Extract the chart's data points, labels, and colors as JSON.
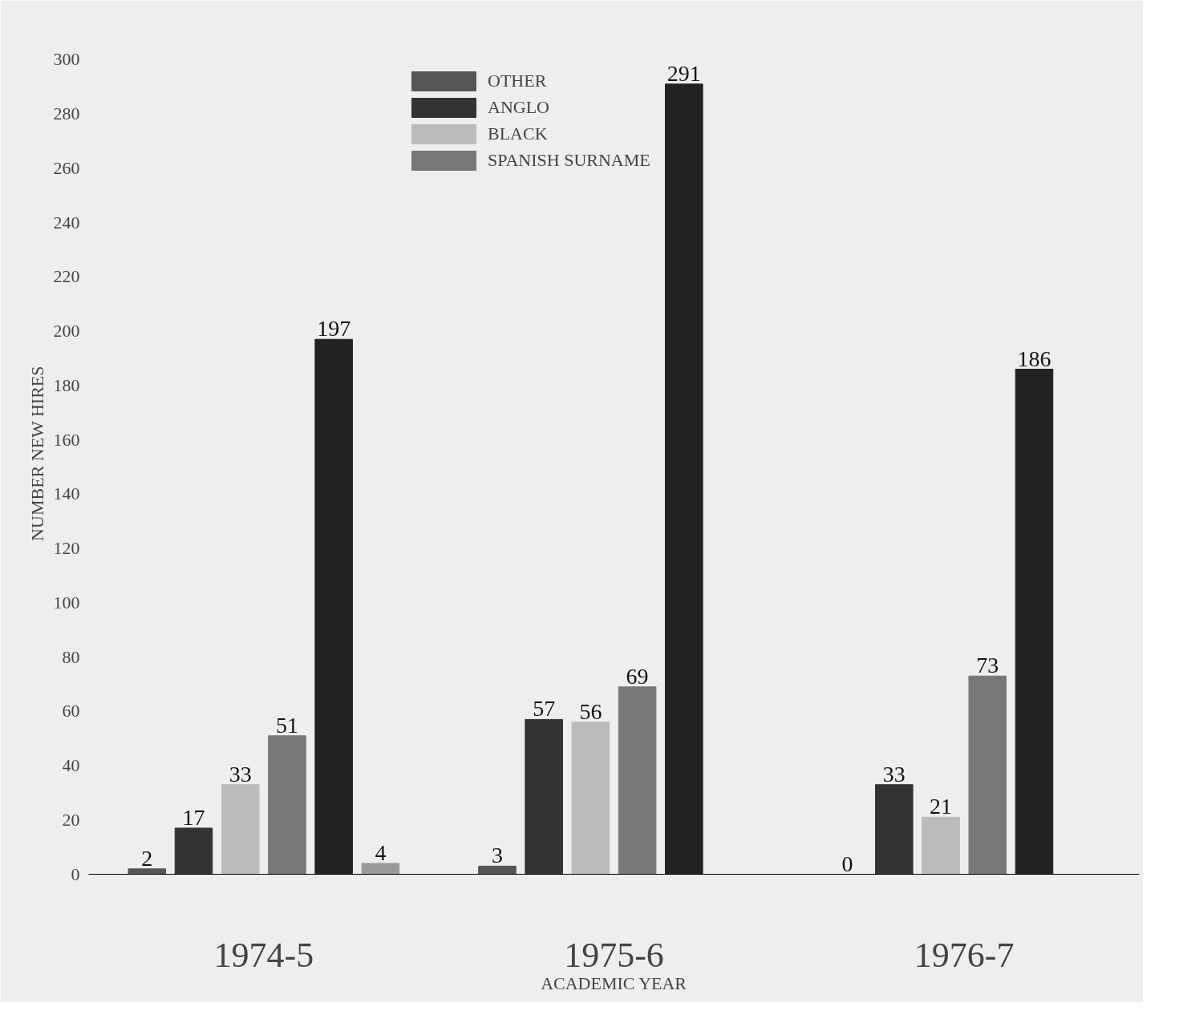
{
  "chart_data": {
    "type": "bar",
    "xlabel": "ACADEMIC YEAR",
    "ylabel": "NUMBER NEW HIRES",
    "categories": [
      "1974-5",
      "1975-6",
      "1976-7"
    ],
    "series": [
      {
        "name": "OTHER",
        "color": "#555555",
        "values": [
          2,
          3,
          0
        ]
      },
      {
        "name": "ANGLO",
        "color": "#333333",
        "values": [
          17,
          57,
          33
        ]
      },
      {
        "name": "BLACK",
        "color": "#bbbbbb",
        "values": [
          33,
          56,
          21
        ]
      },
      {
        "name": "SPANISH SURNAME",
        "color": "#777777",
        "values": [
          51,
          69,
          73
        ]
      },
      {
        "color": "#222222",
        "values": [
          197,
          291,
          186
        ]
      },
      {
        "color": "#999999",
        "values": [
          4,
          null,
          null
        ]
      }
    ],
    "ylim": [
      0,
      310
    ],
    "yticks": [
      0,
      20,
      40,
      60,
      80,
      100,
      120,
      140,
      160,
      180,
      200,
      220,
      240,
      260,
      280,
      300
    ],
    "data_labels": true,
    "legend": "top",
    "grid": false
  }
}
